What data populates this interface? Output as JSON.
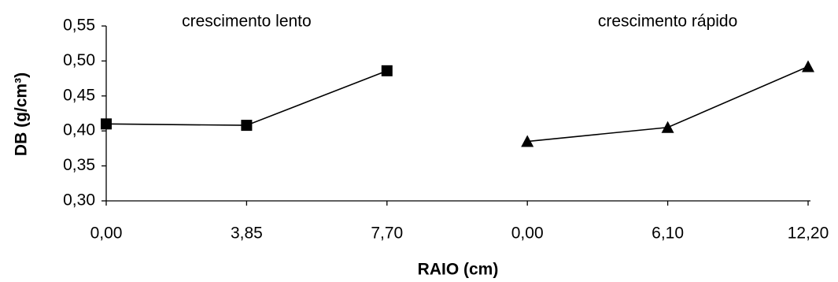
{
  "chart_data": {
    "type": "line",
    "categories": [
      "0,00",
      "3,85",
      "7,70",
      "0,00",
      "6,10",
      "12,20"
    ],
    "series": [
      {
        "name": "crescimento lento",
        "color": "#000000",
        "marker": "square",
        "values": [
          0.41,
          0.408,
          0.486,
          null,
          null,
          null
        ]
      },
      {
        "name": "crescimento rápido",
        "color": "#000000",
        "marker": "triangle",
        "values": [
          null,
          null,
          null,
          0.385,
          0.405,
          0.492
        ]
      }
    ],
    "xlabel": "RAIO (cm)",
    "ylabel": "DB (g/cm³)",
    "ylim": [
      0.3,
      0.55
    ],
    "yticks": [
      {
        "value": 0.3,
        "label": "0,30"
      },
      {
        "value": 0.35,
        "label": "0,35"
      },
      {
        "value": 0.4,
        "label": "0,40"
      },
      {
        "value": 0.45,
        "label": "0,45"
      },
      {
        "value": 0.5,
        "label": "0,50"
      },
      {
        "value": 0.55,
        "label": "0,55"
      }
    ],
    "grid": false
  }
}
